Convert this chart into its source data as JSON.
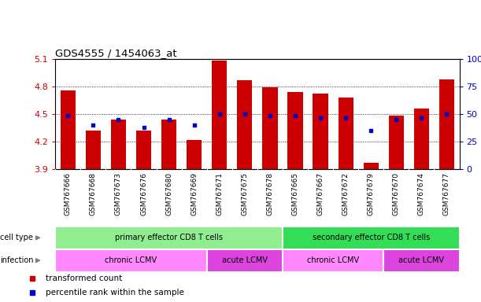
{
  "title": "GDS4555 / 1454063_at",
  "samples": [
    "GSM767666",
    "GSM767668",
    "GSM767673",
    "GSM767676",
    "GSM767680",
    "GSM767669",
    "GSM767671",
    "GSM767675",
    "GSM767678",
    "GSM767665",
    "GSM767667",
    "GSM767672",
    "GSM767679",
    "GSM767670",
    "GSM767674",
    "GSM767677"
  ],
  "red_values": [
    4.76,
    4.32,
    4.44,
    4.32,
    4.44,
    4.22,
    5.08,
    4.87,
    4.79,
    4.74,
    4.72,
    4.68,
    3.97,
    4.48,
    4.56,
    4.88
  ],
  "blue_values": [
    4.48,
    4.38,
    4.44,
    4.35,
    4.44,
    4.38,
    4.5,
    4.5,
    4.48,
    4.48,
    4.46,
    4.46,
    4.32,
    4.44,
    4.46,
    4.5
  ],
  "ymin": 3.9,
  "ymax": 5.1,
  "yticks": [
    3.9,
    4.2,
    4.5,
    4.8,
    5.1
  ],
  "ytick_labels": [
    "3.9",
    "4.2",
    "4.5",
    "4.8",
    "5.1"
  ],
  "right_yticks": [
    0,
    25,
    50,
    75,
    100
  ],
  "right_ytick_labels": [
    "0",
    "25",
    "50",
    "75",
    "100%"
  ],
  "gridlines": [
    4.2,
    4.5,
    4.8
  ],
  "bar_color": "#CC0000",
  "dot_color": "#0000CC",
  "cell_type_groups": [
    {
      "label": "primary effector CD8 T cells",
      "start": 0,
      "end": 9,
      "color": "#90EE90"
    },
    {
      "label": "secondary effector CD8 T cells",
      "start": 9,
      "end": 16,
      "color": "#33DD55"
    }
  ],
  "infection_groups": [
    {
      "label": "chronic LCMV",
      "start": 0,
      "end": 6,
      "color": "#FF88FF"
    },
    {
      "label": "acute LCMV",
      "start": 6,
      "end": 9,
      "color": "#DD44DD"
    },
    {
      "label": "chronic LCMV",
      "start": 9,
      "end": 13,
      "color": "#FF88FF"
    },
    {
      "label": "acute LCMV",
      "start": 13,
      "end": 16,
      "color": "#DD44DD"
    }
  ],
  "legend_items": [
    {
      "label": "transformed count",
      "color": "#CC0000"
    },
    {
      "label": "percentile rank within the sample",
      "color": "#0000CC"
    }
  ],
  "ytick_color": "#CC0000",
  "right_ytick_color": "#0000CC",
  "xtick_bg": "#CCCCCC",
  "plot_bg": "#FFFFFF",
  "label_color_ct": "#555555",
  "label_color_inf": "#555555"
}
